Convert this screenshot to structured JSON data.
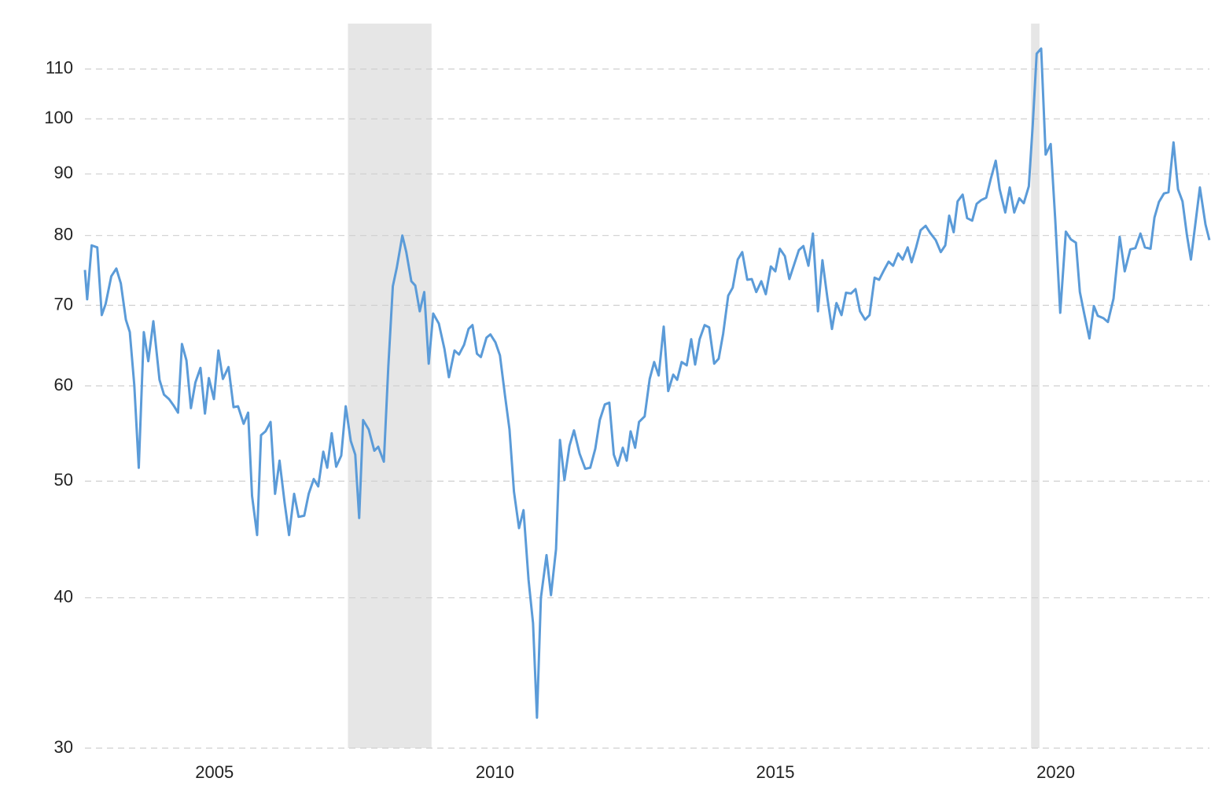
{
  "chart_data": {
    "type": "line",
    "log_y": true,
    "grid": true,
    "color": "#5b9bd8",
    "shade_color": "#e6e6e6",
    "shaded_periods": [
      [
        2007.38,
        2008.87
      ],
      [
        2019.56,
        2019.71
      ]
    ],
    "xlim": [
      2002.69,
      2022.74
    ],
    "xticks": [
      2005,
      2010,
      2015,
      2020
    ],
    "ylim": [
      30,
      120
    ],
    "yticks": [
      30,
      40,
      50,
      60,
      70,
      80,
      90,
      100,
      110
    ],
    "x": [
      2002.69,
      2002.73,
      2002.81,
      2002.91,
      2002.99,
      2003.06,
      2003.16,
      2003.25,
      2003.33,
      2003.42,
      2003.49,
      2003.57,
      2003.65,
      2003.74,
      2003.82,
      2003.91,
      2004.02,
      2004.1,
      2004.19,
      2004.27,
      2004.35,
      2004.42,
      2004.5,
      2004.58,
      2004.66,
      2004.75,
      2004.83,
      2004.9,
      2004.99,
      2005.07,
      2005.15,
      2005.25,
      2005.34,
      2005.42,
      2005.52,
      2005.6,
      2005.67,
      2005.76,
      2005.83,
      2005.91,
      2006.0,
      2006.08,
      2006.16,
      2006.25,
      2006.33,
      2006.42,
      2006.5,
      2006.6,
      2006.68,
      2006.77,
      2006.85,
      2006.94,
      2007.01,
      2007.09,
      2007.17,
      2007.26,
      2007.34,
      2007.43,
      2007.51,
      2007.58,
      2007.65,
      2007.75,
      2007.85,
      2007.92,
      2008.02,
      2008.1,
      2008.18,
      2008.25,
      2008.35,
      2008.42,
      2008.51,
      2008.58,
      2008.66,
      2008.74,
      2008.82,
      2008.9,
      2009.0,
      2009.1,
      2009.18,
      2009.28,
      2009.36,
      2009.45,
      2009.53,
      2009.6,
      2009.68,
      2009.75,
      2009.85,
      2009.92,
      2010.01,
      2010.09,
      2010.18,
      2010.26,
      2010.34,
      2010.43,
      2010.51,
      2010.6,
      2010.68,
      2010.75,
      2010.82,
      2010.92,
      2011.0,
      2011.09,
      2011.16,
      2011.24,
      2011.33,
      2011.41,
      2011.51,
      2011.61,
      2011.7,
      2011.79,
      2011.87,
      2011.96,
      2012.04,
      2012.12,
      2012.19,
      2012.28,
      2012.35,
      2012.42,
      2012.5,
      2012.57,
      2012.67,
      2012.76,
      2012.84,
      2012.92,
      2013.01,
      2013.09,
      2013.18,
      2013.25,
      2013.33,
      2013.42,
      2013.5,
      2013.57,
      2013.65,
      2013.74,
      2013.82,
      2013.91,
      2013.99,
      2014.07,
      2014.16,
      2014.24,
      2014.33,
      2014.41,
      2014.5,
      2014.58,
      2014.66,
      2014.75,
      2014.83,
      2014.92,
      2015.0,
      2015.08,
      2015.17,
      2015.25,
      2015.34,
      2015.42,
      2015.5,
      2015.59,
      2015.67,
      2015.76,
      2015.84,
      2015.93,
      2016.01,
      2016.09,
      2016.18,
      2016.26,
      2016.35,
      2016.43,
      2016.51,
      2016.6,
      2016.68,
      2016.77,
      2016.85,
      2016.94,
      2017.02,
      2017.1,
      2017.19,
      2017.27,
      2017.36,
      2017.43,
      2017.51,
      2017.59,
      2017.68,
      2017.76,
      2017.86,
      2017.95,
      2018.03,
      2018.1,
      2018.18,
      2018.25,
      2018.34,
      2018.42,
      2018.51,
      2018.59,
      2018.67,
      2018.76,
      2018.84,
      2018.93,
      2019.0,
      2019.1,
      2019.18,
      2019.26,
      2019.35,
      2019.43,
      2019.52,
      2019.59,
      2019.66,
      2019.74,
      2019.82,
      2019.91,
      2019.99,
      2020.08,
      2020.18,
      2020.27,
      2020.36,
      2020.43,
      2020.51,
      2020.6,
      2020.68,
      2020.75,
      2020.85,
      2020.93,
      2021.03,
      2021.14,
      2021.23,
      2021.33,
      2021.42,
      2021.51,
      2021.59,
      2021.69,
      2021.76,
      2021.84,
      2021.93,
      2022.01,
      2022.1,
      2022.18,
      2022.26,
      2022.34,
      2022.41,
      2022.57,
      2022.67,
      2022.74
    ],
    "values": [
      74.9,
      70.8,
      78.5,
      78.2,
      68.7,
      70.2,
      74.0,
      75.1,
      73.0,
      68.1,
      66.5,
      60.1,
      51.3,
      66.5,
      62.9,
      67.9,
      60.7,
      59.0,
      58.5,
      57.8,
      57.0,
      65.0,
      63.0,
      57.5,
      60.4,
      62.1,
      56.9,
      60.9,
      58.5,
      64.2,
      60.8,
      62.2,
      57.6,
      57.7,
      55.8,
      57.0,
      48.6,
      45.1,
      54.6,
      55.0,
      56.0,
      48.8,
      52.0,
      48.0,
      45.1,
      48.8,
      46.7,
      46.8,
      48.8,
      50.2,
      49.5,
      52.9,
      51.3,
      54.8,
      51.4,
      52.5,
      57.7,
      54.0,
      52.6,
      46.6,
      56.2,
      55.2,
      53.0,
      53.4,
      51.9,
      62.3,
      72.6,
      75.2,
      80.0,
      77.5,
      73.3,
      72.7,
      69.2,
      71.8,
      62.6,
      68.9,
      67.6,
      64.4,
      61.0,
      64.2,
      63.7,
      64.9,
      66.9,
      67.4,
      63.8,
      63.4,
      65.8,
      66.2,
      65.2,
      63.6,
      58.9,
      55.2,
      49.0,
      45.7,
      47.3,
      41.4,
      38.1,
      31.8,
      40.0,
      43.4,
      40.2,
      43.9,
      54.1,
      50.1,
      53.5,
      55.1,
      52.7,
      51.2,
      51.3,
      53.2,
      56.2,
      57.9,
      58.1,
      52.6,
      51.5,
      53.3,
      52.0,
      55.0,
      53.3,
      56.0,
      56.6,
      60.8,
      62.8,
      61.2,
      67.2,
      59.4,
      61.3,
      60.7,
      62.8,
      62.4,
      65.6,
      62.5,
      65.6,
      67.4,
      67.1,
      62.6,
      63.2,
      66.3,
      71.3,
      72.4,
      76.4,
      77.5,
      73.5,
      73.6,
      71.8,
      73.3,
      71.5,
      75.4,
      74.7,
      78.0,
      76.9,
      73.6,
      75.8,
      77.8,
      78.4,
      75.5,
      80.3,
      69.2,
      76.3,
      70.9,
      66.9,
      70.3,
      68.7,
      71.7,
      71.6,
      72.2,
      69.2,
      68.1,
      68.7,
      73.8,
      73.5,
      74.9,
      76.1,
      75.5,
      77.3,
      76.4,
      78.2,
      76.0,
      78.2,
      80.8,
      81.5,
      80.4,
      79.3,
      77.5,
      78.5,
      83.1,
      80.5,
      85.4,
      86.5,
      82.7,
      82.3,
      85.0,
      85.6,
      86.0,
      89.1,
      92.3,
      87.4,
      83.6,
      87.7,
      83.6,
      85.9,
      85.1,
      87.9,
      98.9,
      113.3,
      114.4,
      93.4,
      95.3,
      82.6,
      69.0,
      80.6,
      79.4,
      78.9,
      71.8,
      68.8,
      65.7,
      69.9,
      68.6,
      68.3,
      67.8,
      70.9,
      79.8,
      74.7,
      77.9,
      78.1,
      80.3,
      78.2,
      78.0,
      82.8,
      85.3,
      86.7,
      86.9,
      95.6,
      87.4,
      85.4,
      80.0,
      76.4,
      87.7,
      81.7,
      79.3
    ]
  }
}
